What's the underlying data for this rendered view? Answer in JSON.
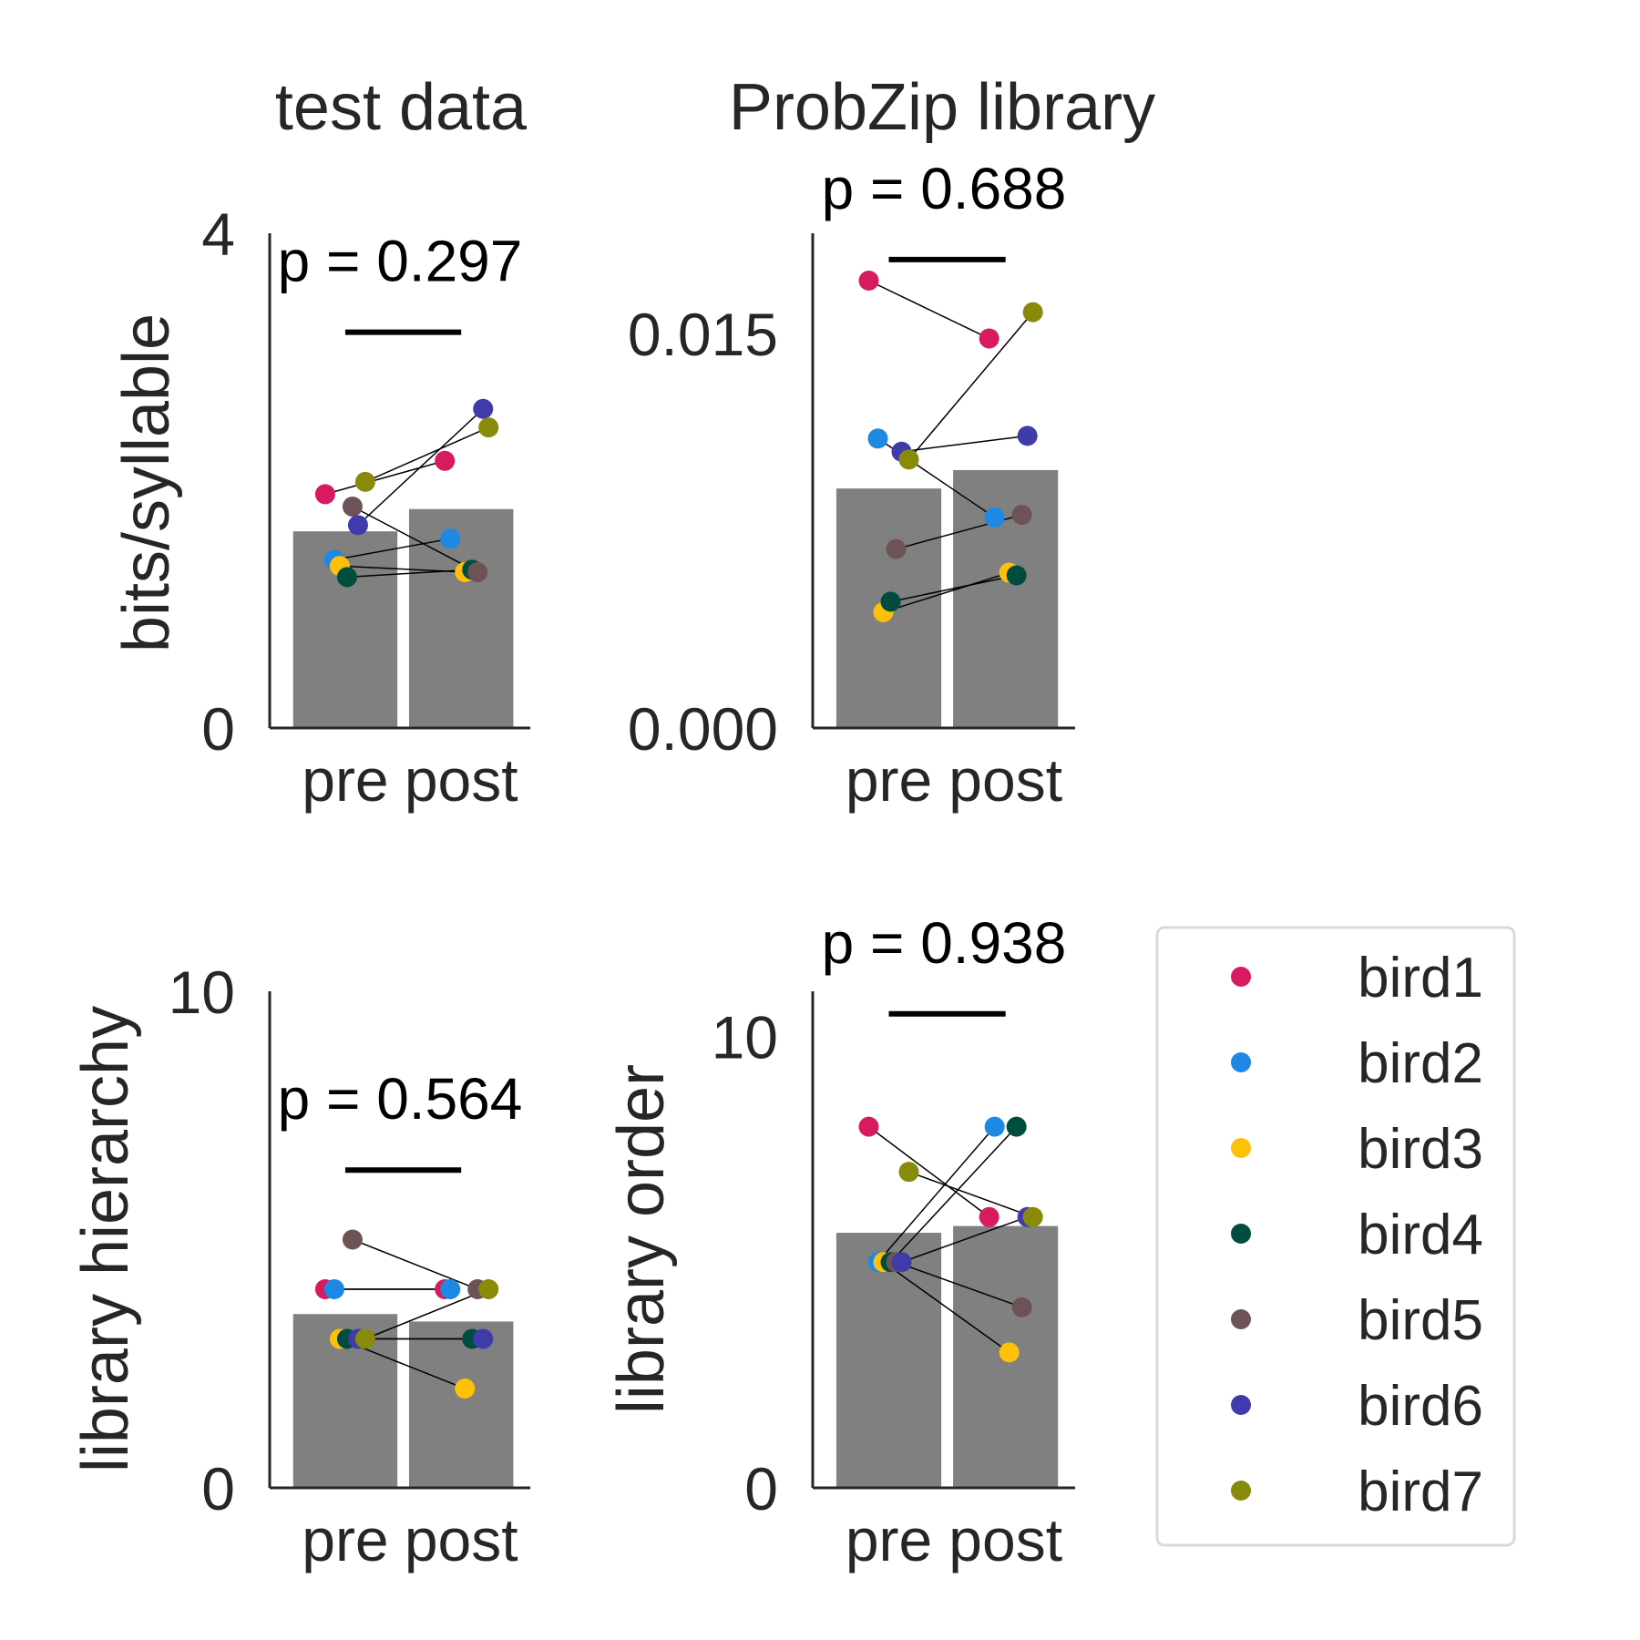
{
  "column_titles": {
    "left": "test data",
    "right": "ProbZip library"
  },
  "colors": {
    "bar": "#808080",
    "axis": "#262626",
    "connector": "#000000",
    "sigbar": "#000000"
  },
  "legend": {
    "placement": "lower-right outside",
    "entries": [
      {
        "name": "bird1",
        "color": "#d81b60"
      },
      {
        "name": "bird2",
        "color": "#1e88e5"
      },
      {
        "name": "bird3",
        "color": "#ffc107"
      },
      {
        "name": "bird4",
        "color": "#004d40"
      },
      {
        "name": "bird5",
        "color": "#6d5356"
      },
      {
        "name": "bird6",
        "color": "#3f3bab"
      },
      {
        "name": "bird7",
        "color": "#8a8a0a"
      }
    ]
  },
  "chart_data": [
    {
      "type": "bar",
      "title": "test data",
      "ylabel": "bits/syllable",
      "categories": [
        "pre",
        "post"
      ],
      "ylim": [
        0,
        4
      ],
      "yticks": [
        0,
        4
      ],
      "ytick_labels": [
        "0",
        "4"
      ],
      "bar_values": [
        1.59,
        1.77
      ],
      "p_label": "p = 0.297",
      "sig_line_y": 3.2,
      "birds": [
        {
          "name": "bird1",
          "pre": 1.89,
          "post": 2.16
        },
        {
          "name": "bird2",
          "pre": 1.36,
          "post": 1.53
        },
        {
          "name": "bird3",
          "pre": 1.31,
          "post": 1.26
        },
        {
          "name": "bird4",
          "pre": 1.22,
          "post": 1.28
        },
        {
          "name": "bird5",
          "pre": 1.79,
          "post": 1.26
        },
        {
          "name": "bird6",
          "pre": 1.64,
          "post": 2.58
        },
        {
          "name": "bird7",
          "pre": 1.99,
          "post": 2.43
        }
      ]
    },
    {
      "type": "bar",
      "title": "ProbZip library",
      "ylabel": "",
      "categories": [
        "pre",
        "post"
      ],
      "ylim": [
        0,
        0.0188
      ],
      "yticks": [
        0,
        0.015
      ],
      "ytick_labels": [
        "0.000",
        "0.015"
      ],
      "bar_values": [
        0.0091,
        0.0098
      ],
      "p_label": "p = 0.688",
      "sig_line_y": 0.0178,
      "birds": [
        {
          "name": "bird1",
          "pre": 0.017,
          "post": 0.0148
        },
        {
          "name": "bird2",
          "pre": 0.011,
          "post": 0.008
        },
        {
          "name": "bird3",
          "pre": 0.0044,
          "post": 0.0059
        },
        {
          "name": "bird4",
          "pre": 0.0048,
          "post": 0.0058
        },
        {
          "name": "bird5",
          "pre": 0.0068,
          "post": 0.0081
        },
        {
          "name": "bird6",
          "pre": 0.0105,
          "post": 0.0111
        },
        {
          "name": "bird7",
          "pre": 0.0102,
          "post": 0.0158
        }
      ]
    },
    {
      "type": "bar",
      "title": "",
      "ylabel": "library hierarchy",
      "categories": [
        "pre",
        "post"
      ],
      "ylim": [
        0,
        10
      ],
      "yticks": [
        0,
        10
      ],
      "ytick_labels": [
        "0",
        "10"
      ],
      "bar_values": [
        3.5,
        3.35
      ],
      "p_label": "p = 0.564",
      "sig_line_y": 6.4,
      "birds": [
        {
          "name": "bird1",
          "pre": 4.0,
          "post": 4.0
        },
        {
          "name": "bird2",
          "pre": 4.0,
          "post": 4.0
        },
        {
          "name": "bird3",
          "pre": 3.0,
          "post": 2.0
        },
        {
          "name": "bird4",
          "pre": 3.0,
          "post": 3.0
        },
        {
          "name": "bird5",
          "pre": 5.0,
          "post": 4.0
        },
        {
          "name": "bird6",
          "pre": 3.0,
          "post": 3.0
        },
        {
          "name": "bird7",
          "pre": 3.0,
          "post": 4.0
        }
      ]
    },
    {
      "type": "bar",
      "title": "",
      "ylabel": "library order",
      "categories": [
        "pre",
        "post"
      ],
      "ylim": [
        0,
        11
      ],
      "yticks": [
        0,
        10
      ],
      "ytick_labels": [
        "0",
        "10"
      ],
      "bar_values": [
        5.65,
        5.8
      ],
      "p_label": "p = 0.938",
      "sig_line_y": 10.5,
      "birds": [
        {
          "name": "bird1",
          "pre": 8.0,
          "post": 6.0
        },
        {
          "name": "bird2",
          "pre": 5.0,
          "post": 8.0
        },
        {
          "name": "bird3",
          "pre": 5.0,
          "post": 3.0
        },
        {
          "name": "bird4",
          "pre": 5.0,
          "post": 8.0
        },
        {
          "name": "bird5",
          "pre": 5.0,
          "post": 4.0
        },
        {
          "name": "bird6",
          "pre": 5.0,
          "post": 6.0
        },
        {
          "name": "bird7",
          "pre": 7.0,
          "post": 6.0
        }
      ]
    }
  ]
}
